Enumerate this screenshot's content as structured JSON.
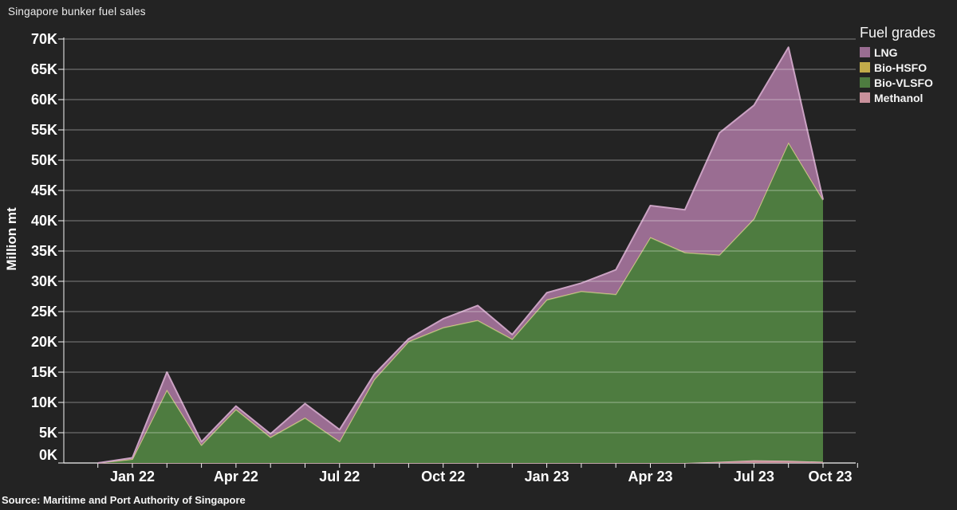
{
  "title": "Singapore bunker fuel sales",
  "source": "Source: Maritime and Port Authority of Singapore",
  "legend": {
    "title": "Fuel grades",
    "items": [
      {
        "label": "LNG",
        "color": "#9a6d92"
      },
      {
        "label": "Bio-HSFO",
        "color": "#c2ab4a"
      },
      {
        "label": "Bio-VLSFO",
        "color": "#4e7c40"
      },
      {
        "label": "Methanol",
        "color": "#c9919b"
      }
    ]
  },
  "colors": {
    "background": "#232323",
    "grid": "#ffffff",
    "axis": "#f5f5f5",
    "text": "#ffffff"
  },
  "chart_data": {
    "type": "area",
    "stacked": true,
    "title": "Singapore bunker fuel sales",
    "ylabel": "Million mt",
    "ylim": [
      0,
      70
    ],
    "ytick_step": 5,
    "ytick_suffix": "K",
    "grid": true,
    "legend_position": "top-right",
    "x": [
      "Dec 21",
      "Jan 22",
      "Feb 22",
      "Mar 22",
      "Apr 22",
      "May 22",
      "Jun 22",
      "Jul 22",
      "Aug 22",
      "Sep 22",
      "Oct 22",
      "Nov 22",
      "Dec 22",
      "Jan 23",
      "Feb 23",
      "Mar 23",
      "Apr 23",
      "May 23",
      "Jun 23",
      "Jul 23",
      "Aug 23",
      "Sep 23"
    ],
    "xticks": [
      {
        "index": 1,
        "label": "Jan 22"
      },
      {
        "index": 4,
        "label": "Apr 22"
      },
      {
        "index": 7,
        "label": "Jul 22"
      },
      {
        "index": 10,
        "label": "Oct 22"
      },
      {
        "index": 13,
        "label": "Jan 23"
      },
      {
        "index": 16,
        "label": "Apr 23"
      },
      {
        "index": 19,
        "label": "Jul 23"
      },
      {
        "index": 22,
        "label": "Oct 23"
      }
    ],
    "series": [
      {
        "name": "Methanol",
        "color": "#c9919b",
        "line": "#e3bcc2",
        "values": [
          0,
          0,
          0,
          0,
          0,
          0,
          0,
          0,
          0,
          0,
          0,
          0,
          0,
          0,
          0,
          0,
          0,
          0,
          0.2,
          0.45,
          0.35,
          0.2
        ]
      },
      {
        "name": "Bio-VLSFO",
        "color": "#4e7c40",
        "line": "#7ca768",
        "values": [
          0,
          0.6,
          12,
          2.9,
          8.8,
          4.2,
          7.4,
          3.5,
          13.7,
          20,
          22.3,
          23.5,
          20.4,
          26.9,
          28.3,
          27.8,
          37.2,
          34.7,
          34.1,
          39.8,
          52.5,
          43.2
        ]
      },
      {
        "name": "Bio-HSFO",
        "color": "#c2ab4a",
        "line": "#d8c786",
        "values": [
          0,
          0.05,
          0.1,
          0.1,
          0.1,
          0.1,
          0.1,
          0.1,
          0.1,
          0.1,
          0.1,
          0.1,
          0.1,
          0.1,
          0.1,
          0.1,
          0.1,
          0.1,
          0.1,
          0.1,
          0.1,
          0.1
        ]
      },
      {
        "name": "LNG",
        "color": "#9a6d92",
        "line": "#cba2c3",
        "values": [
          0,
          0.2,
          2.9,
          0.5,
          0.5,
          0.5,
          2.3,
          1.9,
          0.8,
          0.4,
          1.4,
          2.4,
          0.7,
          1.1,
          1.3,
          4.0,
          5.2,
          7.0,
          20.1,
          18.7,
          15.7,
          0
        ]
      }
    ]
  }
}
